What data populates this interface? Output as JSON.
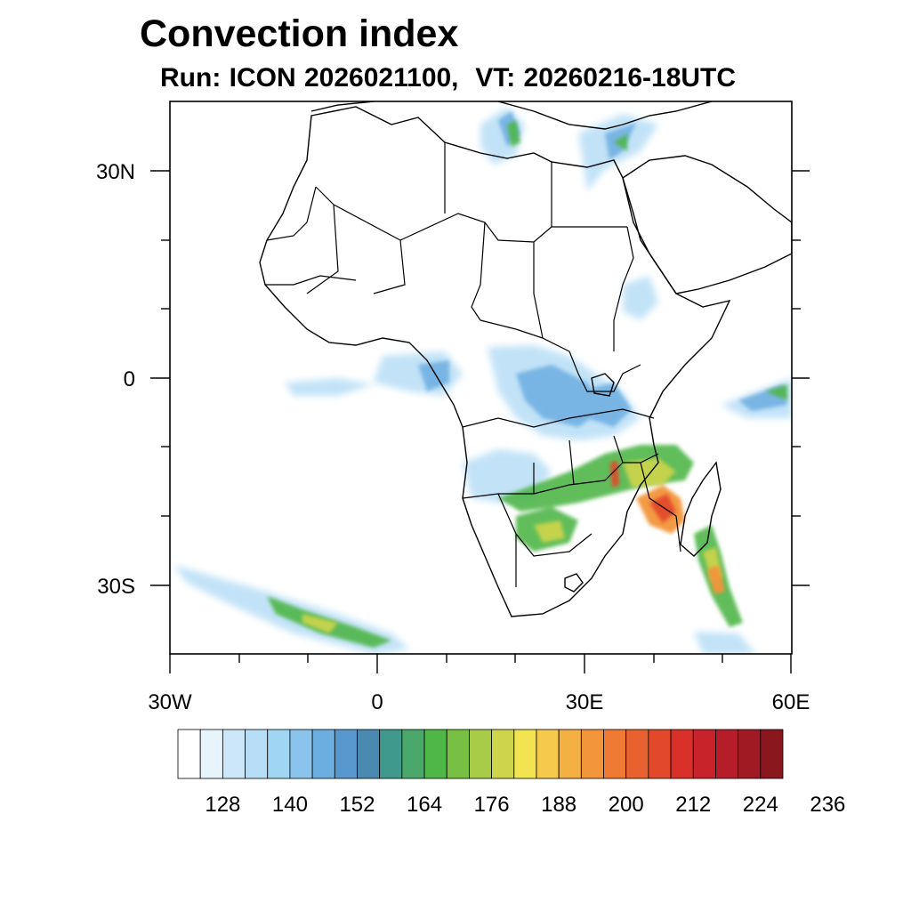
{
  "title": "Convection index",
  "subtitle": {
    "run_label": "Run:",
    "run_value": "ICON 2026021100,",
    "vt_label": "VT:",
    "vt_value": "20260216-18UTC"
  },
  "axes": {
    "lon_labels": [
      "30W",
      "0",
      "30E",
      "60E"
    ],
    "lat_labels": [
      "30N",
      "0",
      "30S"
    ]
  },
  "colorbar": {
    "labels": [
      "128",
      "140",
      "152",
      "164",
      "176",
      "188",
      "200",
      "212",
      "224",
      "236"
    ],
    "colors": [
      "#ffffff",
      "#e8f4fb",
      "#cce7f7",
      "#b7def6",
      "#a1d5f4",
      "#8ac4ec",
      "#6daee1",
      "#5998ce",
      "#4a8ab0",
      "#3f9a8d",
      "#4aa86a",
      "#4fb648",
      "#78c043",
      "#a8cc48",
      "#cfd54b",
      "#f1e352",
      "#f6c84b",
      "#f4b042",
      "#f3953b",
      "#ef7a34",
      "#e9612f",
      "#e2492b",
      "#d93129",
      "#c8232a",
      "#b51e28",
      "#a01a24",
      "#8a161e"
    ]
  }
}
